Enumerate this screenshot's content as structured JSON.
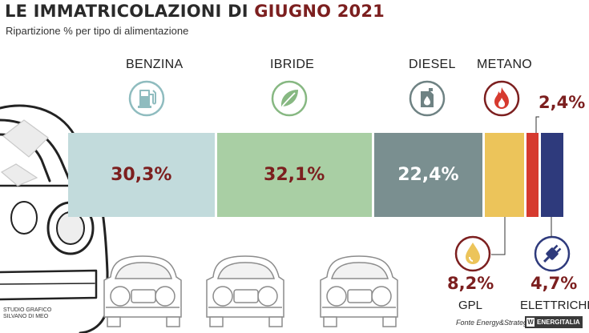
{
  "title_part1": "LE IMMATRICOLAZIONI DI",
  "title_part2": "GIUGNO 2021",
  "subtitle": "Ripartizione % per tipo di alimentazione",
  "colors": {
    "benzina": "#c2dbdc",
    "ibride": "#a9cfa4",
    "diesel": "#7a8f90",
    "gpl": "#ecc45a",
    "metano": "#d63a2f",
    "elettriche": "#2e3a7c",
    "value_dark": "#7c1f1f",
    "value_light": "#ffffff"
  },
  "chart_data": {
    "type": "bar",
    "title": "LE IMMATRICOLAZIONI DI GIUGNO 2021",
    "subtitle": "Ripartizione % per tipo di alimentazione",
    "unit": "%",
    "categories": [
      "BENZINA",
      "IBRIDE",
      "DIESEL",
      "GPL",
      "METANO",
      "ELETTRICHE"
    ],
    "values": [
      30.3,
      32.1,
      22.4,
      8.2,
      2.4,
      4.7
    ],
    "value_labels": [
      "30,3%",
      "32,1%",
      "22,4%",
      "8,2%",
      "2,4%",
      "4,7%"
    ],
    "category_labels": [
      "BENZINA",
      "IBRIDE",
      "DIESEL",
      "GPL",
      "METANO",
      "ELETTRICHE"
    ],
    "icons": [
      "fuel-pump-icon",
      "leaf-icon",
      "jerrycan-icon",
      "gas-drop-icon",
      "flame-icon",
      "plug-icon"
    ]
  },
  "credit_line1": "STUDIO GRAFICO",
  "credit_line2": "SILVANO DI MEO",
  "source": "Fonte Energy&Strategy",
  "logo": "ENERGITALIA"
}
